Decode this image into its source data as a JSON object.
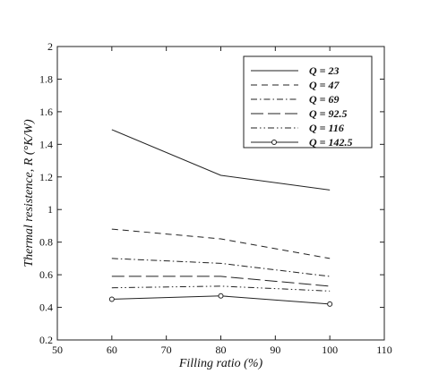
{
  "chart_data": {
    "type": "line",
    "xlabel": "Filling ratio (%)",
    "ylabel": "Thermal resistence, R (°K/W)",
    "xlim": [
      50,
      110
    ],
    "ylim": [
      0.2,
      2
    ],
    "xticks": [
      50,
      60,
      70,
      80,
      90,
      100,
      110
    ],
    "yticks": [
      0.2,
      0.4,
      0.6,
      0.8,
      1,
      1.2,
      1.4,
      1.6,
      1.8,
      2
    ],
    "grid": false,
    "legend_position": "top-right",
    "x": [
      60,
      80,
      100
    ],
    "series": [
      {
        "name": "Q = 23",
        "values": [
          1.49,
          1.21,
          1.12
        ],
        "style": "solid"
      },
      {
        "name": "Q = 47",
        "values": [
          0.88,
          0.82,
          0.7
        ],
        "style": "dashed"
      },
      {
        "name": "Q = 69",
        "values": [
          0.7,
          0.67,
          0.59
        ],
        "style": "dashdot"
      },
      {
        "name": "Q = 92.5",
        "values": [
          0.59,
          0.59,
          0.53
        ],
        "style": "longdash"
      },
      {
        "name": "Q = 116",
        "values": [
          0.52,
          0.53,
          0.5
        ],
        "style": "dashdotdot"
      },
      {
        "name": "Q = 142.5",
        "values": [
          0.45,
          0.47,
          0.42
        ],
        "style": "solid-circle"
      }
    ]
  }
}
